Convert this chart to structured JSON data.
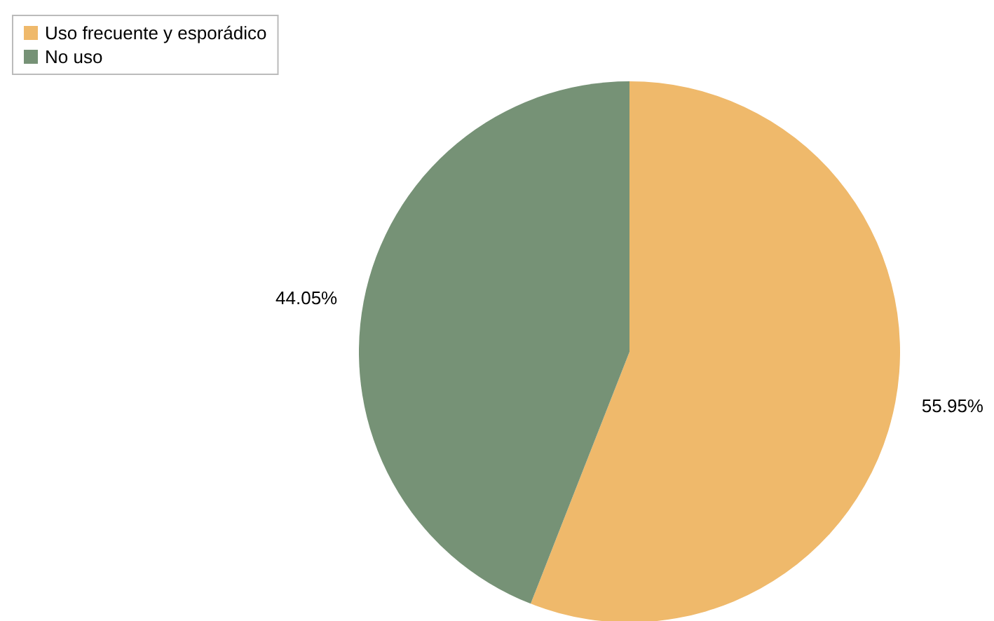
{
  "chart_data": {
    "type": "pie",
    "categories": [
      "Uso frecuente y esporádico",
      "No uso"
    ],
    "values": [
      55.95,
      44.05
    ],
    "colors": [
      "#efb96b",
      "#769276"
    ],
    "value_labels": [
      "55.95%",
      "44.05%"
    ],
    "legend": "top left"
  }
}
